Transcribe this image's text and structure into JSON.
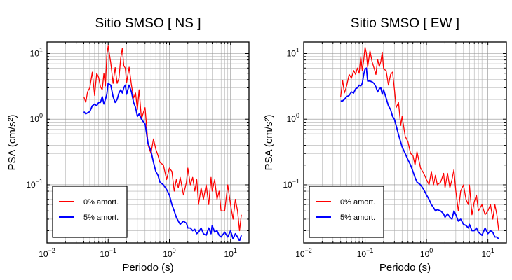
{
  "chart_data": [
    {
      "type": "line",
      "title": "Sitio SMSO [ NS ]",
      "xlabel": "Periodo (s)",
      "ylabel": "PSA (cm/s²)",
      "xscale": "log",
      "yscale": "log",
      "xlim": [
        0.01,
        20
      ],
      "ylim": [
        0.013,
        15
      ],
      "grid": true,
      "legend_position": "bottom-left",
      "x_ticks": [
        {
          "value": 0.01,
          "base": "10",
          "exp": "−2"
        },
        {
          "value": 0.1,
          "base": "10",
          "exp": "−1"
        },
        {
          "value": 1,
          "base": "10",
          "exp": "0"
        },
        {
          "value": 10,
          "base": "10",
          "exp": "1"
        }
      ],
      "y_ticks": [
        {
          "value": 10,
          "base": "10",
          "exp": "1"
        },
        {
          "value": 1,
          "base": "10",
          "exp": "0"
        },
        {
          "value": 0.1,
          "base": "10",
          "exp": "−1"
        }
      ],
      "series": [
        {
          "name": "0% amort.",
          "color": "#ff0000",
          "x": [
            0.04,
            0.043,
            0.046,
            0.05,
            0.055,
            0.06,
            0.065,
            0.07,
            0.075,
            0.08,
            0.085,
            0.09,
            0.095,
            0.1,
            0.11,
            0.12,
            0.13,
            0.14,
            0.15,
            0.16,
            0.17,
            0.18,
            0.19,
            0.2,
            0.22,
            0.24,
            0.26,
            0.28,
            0.3,
            0.32,
            0.35,
            0.38,
            0.4,
            0.45,
            0.5,
            0.55,
            0.6,
            0.65,
            0.7,
            0.8,
            0.9,
            1.0,
            1.1,
            1.2,
            1.3,
            1.4,
            1.5,
            1.7,
            1.9,
            2.0,
            2.2,
            2.4,
            2.6,
            2.8,
            3.0,
            3.3,
            3.6,
            4.0,
            4.4,
            4.8,
            5.0,
            5.5,
            6.0,
            6.5,
            7.0,
            8.0,
            9.0,
            10.0,
            11.0,
            12.0,
            13.0,
            14.0,
            15.0
          ],
          "y": [
            2.2,
            1.8,
            2.6,
            3.0,
            5.2,
            2.3,
            5.0,
            4.3,
            3.1,
            2.8,
            5.0,
            3.2,
            9.5,
            13.0,
            7.2,
            3.5,
            6.1,
            3.5,
            4.2,
            8.5,
            12.0,
            6.5,
            6.0,
            3.6,
            6.2,
            3.3,
            2.1,
            2.5,
            1.4,
            2.8,
            1.0,
            1.3,
            1.5,
            0.4,
            0.3,
            0.5,
            0.35,
            0.28,
            0.22,
            0.2,
            0.12,
            0.18,
            0.16,
            0.08,
            0.12,
            0.09,
            0.13,
            0.07,
            0.11,
            0.18,
            0.1,
            0.13,
            0.08,
            0.12,
            0.05,
            0.09,
            0.06,
            0.1,
            0.05,
            0.13,
            0.08,
            0.12,
            0.06,
            0.08,
            0.04,
            0.04,
            0.1,
            0.05,
            0.03,
            0.06,
            0.04,
            0.02,
            0.035
          ]
        },
        {
          "name": "5% amort.",
          "color": "#0000ff",
          "x": [
            0.04,
            0.043,
            0.046,
            0.05,
            0.055,
            0.06,
            0.065,
            0.07,
            0.075,
            0.08,
            0.085,
            0.09,
            0.095,
            0.1,
            0.11,
            0.12,
            0.13,
            0.14,
            0.15,
            0.16,
            0.17,
            0.18,
            0.19,
            0.2,
            0.22,
            0.24,
            0.26,
            0.28,
            0.3,
            0.32,
            0.35,
            0.38,
            0.4,
            0.45,
            0.5,
            0.55,
            0.6,
            0.65,
            0.7,
            0.8,
            0.9,
            1.0,
            1.1,
            1.2,
            1.3,
            1.4,
            1.5,
            1.7,
            1.9,
            2.0,
            2.2,
            2.4,
            2.6,
            2.8,
            3.0,
            3.3,
            3.6,
            4.0,
            4.4,
            4.8,
            5.0,
            5.5,
            6.0,
            6.5,
            7.0,
            8.0,
            9.0,
            10.0,
            11.0,
            12.0,
            13.0,
            14.0,
            15.0
          ],
          "y": [
            1.3,
            1.2,
            1.25,
            1.3,
            1.6,
            1.7,
            1.6,
            1.8,
            1.8,
            2.2,
            1.7,
            2.0,
            2.4,
            3.5,
            3.3,
            2.2,
            1.8,
            2.0,
            2.5,
            2.8,
            2.5,
            3.0,
            3.3,
            2.4,
            3.3,
            2.6,
            1.8,
            1.5,
            1.1,
            1.2,
            1.0,
            0.9,
            0.85,
            0.42,
            0.33,
            0.22,
            0.16,
            0.14,
            0.11,
            0.1,
            0.085,
            0.07,
            0.05,
            0.04,
            0.032,
            0.028,
            0.025,
            0.028,
            0.026,
            0.022,
            0.022,
            0.02,
            0.021,
            0.018,
            0.019,
            0.022,
            0.018,
            0.017,
            0.022,
            0.018,
            0.024,
            0.019,
            0.02,
            0.017,
            0.016,
            0.019,
            0.016,
            0.02,
            0.015,
            0.018,
            0.016,
            0.014,
            0.017
          ]
        }
      ]
    },
    {
      "type": "line",
      "title": "Sitio SMSO [ EW ]",
      "xlabel": "Periodo (s)",
      "ylabel": "PSA (cm/s²)",
      "xscale": "log",
      "yscale": "log",
      "xlim": [
        0.01,
        20
      ],
      "ylim": [
        0.013,
        15
      ],
      "grid": true,
      "legend_position": "bottom-left",
      "x_ticks": [
        {
          "value": 0.01,
          "base": "10",
          "exp": "−2"
        },
        {
          "value": 0.1,
          "base": "10",
          "exp": "−1"
        },
        {
          "value": 1,
          "base": "10",
          "exp": "0"
        },
        {
          "value": 10,
          "base": "10",
          "exp": "1"
        }
      ],
      "y_ticks": [
        {
          "value": 10,
          "base": "10",
          "exp": "1"
        },
        {
          "value": 1,
          "base": "10",
          "exp": "0"
        },
        {
          "value": 0.1,
          "base": "10",
          "exp": "−1"
        }
      ],
      "series": [
        {
          "name": "0% amort.",
          "color": "#ff0000",
          "x": [
            0.04,
            0.043,
            0.046,
            0.05,
            0.055,
            0.06,
            0.065,
            0.07,
            0.075,
            0.08,
            0.085,
            0.09,
            0.095,
            0.1,
            0.105,
            0.11,
            0.12,
            0.13,
            0.14,
            0.15,
            0.16,
            0.17,
            0.18,
            0.19,
            0.2,
            0.22,
            0.24,
            0.26,
            0.28,
            0.3,
            0.32,
            0.35,
            0.38,
            0.4,
            0.45,
            0.5,
            0.55,
            0.6,
            0.65,
            0.7,
            0.8,
            0.9,
            1.0,
            1.1,
            1.2,
            1.3,
            1.4,
            1.5,
            1.7,
            1.9,
            2.0,
            2.2,
            2.4,
            2.6,
            2.8,
            3.0,
            3.3,
            3.6,
            4.0,
            4.4,
            4.8,
            5.0,
            5.5,
            6.0,
            6.5,
            7.0,
            8.0,
            9.0,
            10.0,
            11.0,
            12.0,
            13.0,
            14.0,
            15.0
          ],
          "y": [
            2.2,
            3.9,
            2.5,
            3.2,
            4.8,
            4.2,
            5.5,
            4.8,
            6.0,
            5.0,
            9.0,
            5.5,
            8.0,
            12.5,
            10.0,
            6.2,
            11.0,
            7.5,
            6.0,
            4.8,
            8.2,
            6.3,
            7.5,
            10.5,
            5.8,
            5.5,
            3.3,
            4.8,
            5.2,
            2.9,
            1.5,
            1.8,
            0.8,
            1.1,
            0.55,
            0.45,
            0.3,
            0.28,
            0.2,
            0.32,
            0.18,
            0.15,
            0.12,
            0.1,
            0.16,
            0.1,
            0.14,
            0.1,
            0.11,
            0.15,
            0.09,
            0.15,
            0.09,
            0.12,
            0.17,
            0.08,
            0.04,
            0.08,
            0.1,
            0.06,
            0.05,
            0.1,
            0.035,
            0.055,
            0.07,
            0.04,
            0.05,
            0.035,
            0.04,
            0.05,
            0.03,
            0.05,
            0.035,
            0.02
          ]
        },
        {
          "name": "5% amort.",
          "color": "#0000ff",
          "x": [
            0.04,
            0.043,
            0.046,
            0.05,
            0.055,
            0.06,
            0.065,
            0.07,
            0.075,
            0.08,
            0.085,
            0.09,
            0.095,
            0.1,
            0.105,
            0.11,
            0.12,
            0.13,
            0.14,
            0.15,
            0.16,
            0.17,
            0.18,
            0.19,
            0.2,
            0.22,
            0.24,
            0.26,
            0.28,
            0.3,
            0.32,
            0.35,
            0.38,
            0.4,
            0.45,
            0.5,
            0.55,
            0.6,
            0.65,
            0.7,
            0.8,
            0.9,
            1.0,
            1.1,
            1.2,
            1.3,
            1.4,
            1.5,
            1.7,
            1.9,
            2.0,
            2.2,
            2.4,
            2.6,
            2.8,
            3.0,
            3.3,
            3.6,
            4.0,
            4.4,
            4.8,
            5.0,
            5.5,
            6.0,
            6.5,
            7.0,
            8.0,
            9.0,
            10.0,
            11.0,
            12.0,
            13.0,
            14.0,
            15.0
          ],
          "y": [
            1.9,
            1.9,
            2.0,
            2.2,
            2.3,
            2.6,
            2.5,
            2.9,
            3.0,
            3.3,
            3.2,
            3.5,
            4.8,
            5.8,
            6.0,
            3.8,
            3.8,
            3.7,
            3.5,
            3.1,
            2.6,
            2.9,
            3.0,
            2.4,
            2.8,
            2.1,
            1.6,
            1.4,
            1.1,
            1.0,
            0.8,
            0.58,
            0.45,
            0.38,
            0.3,
            0.24,
            0.2,
            0.16,
            0.13,
            0.11,
            0.1,
            0.085,
            0.07,
            0.06,
            0.05,
            0.045,
            0.04,
            0.042,
            0.04,
            0.036,
            0.032,
            0.036,
            0.032,
            0.03,
            0.04,
            0.035,
            0.028,
            0.03,
            0.025,
            0.024,
            0.022,
            0.025,
            0.02,
            0.02,
            0.022,
            0.019,
            0.017,
            0.022,
            0.018,
            0.02,
            0.019,
            0.016,
            0.016,
            0.015
          ]
        }
      ]
    }
  ]
}
